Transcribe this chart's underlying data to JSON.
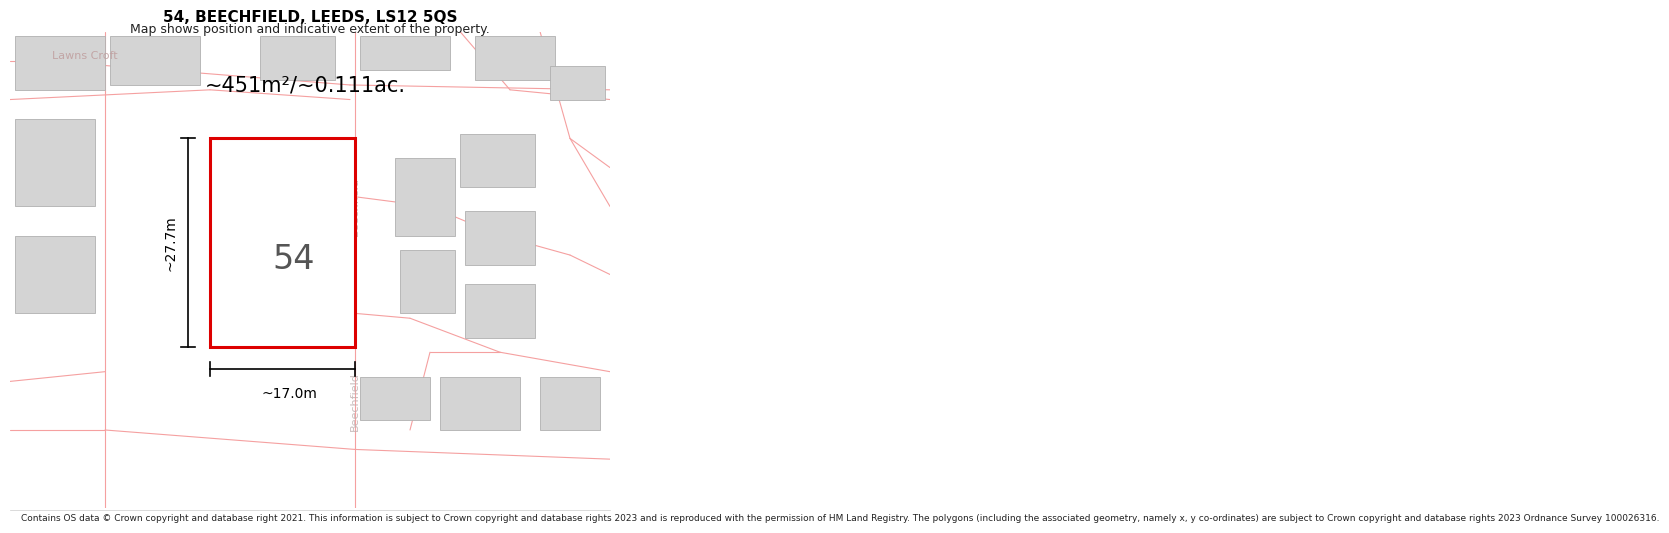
{
  "title": "54, BEECHFIELD, LEEDS, LS12 5QS",
  "subtitle": "Map shows position and indicative extent of the property.",
  "area_text": "~451m²/~0.111ac.",
  "width_text": "~17.0m",
  "height_text": "~27.7m",
  "number_text": "54",
  "footer_text": "Contains OS data © Crown copyright and database right 2021. This information is subject to Crown copyright and database rights 2023 and is reproduced with the permission of HM Land Registry. The polygons (including the associated geometry, namely x, y co-ordinates) are subject to Crown copyright and database rights 2023 Ordnance Survey 100026316.",
  "bg_color": "#ffffff",
  "map_bg": "#ffffff",
  "road_color": "#f5a0a0",
  "building_color": "#d4d4d4",
  "building_edge": "#b0b0b0",
  "plot_color": "#ffffff",
  "plot_edge": "#dd0000",
  "dim_color": "#000000",
  "text_color": "#000000",
  "road_text_color": "#c8a8a8",
  "footer_color": "#222222",
  "lawns_croft_color": "#c0a0a0",
  "beechfield_color": "#c0b0b0"
}
